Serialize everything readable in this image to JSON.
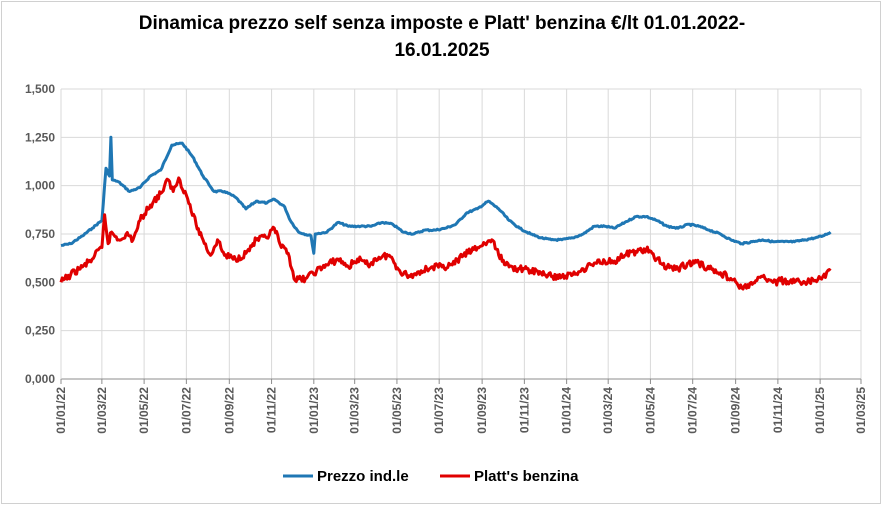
{
  "chart_data": {
    "type": "line",
    "title_line1": "Dinamica prezzo self senza imposte e Platt' benzina €/lt 01.01.2022-",
    "title_line2": "16.01.2025",
    "xlabel": "",
    "ylabel": "",
    "x_ticks": [
      "01/01/22",
      "01/03/22",
      "01/05/22",
      "01/07/22",
      "01/09/22",
      "01/11/22",
      "01/01/23",
      "01/03/23",
      "01/05/23",
      "01/07/23",
      "01/09/23",
      "01/11/23",
      "01/01/24",
      "01/03/24",
      "01/05/24",
      "01/07/24",
      "01/09/24",
      "01/11/24",
      "01/01/25",
      "01/03/25"
    ],
    "y_ticks": [
      "0,000",
      "0,250",
      "0,500",
      "0,750",
      "1,000",
      "1,250",
      "1,500"
    ],
    "ylim": [
      0,
      1.5
    ],
    "xlim": [
      "2022-01-01",
      "2025-03-01"
    ],
    "grid": true,
    "legend_position": "bottom",
    "series": [
      {
        "name": "Prezzo ind.le",
        "color": "#1f77b4",
        "points": [
          [
            "2022-01-01",
            0.69
          ],
          [
            "2022-01-15",
            0.7
          ],
          [
            "2022-02-01",
            0.74
          ],
          [
            "2022-02-15",
            0.78
          ],
          [
            "2022-03-01",
            0.82
          ],
          [
            "2022-03-07",
            1.09
          ],
          [
            "2022-03-12",
            1.05
          ],
          [
            "2022-03-14",
            1.25
          ],
          [
            "2022-03-16",
            1.03
          ],
          [
            "2022-03-25",
            1.02
          ],
          [
            "2022-04-10",
            0.97
          ],
          [
            "2022-04-25",
            0.99
          ],
          [
            "2022-05-10",
            1.05
          ],
          [
            "2022-05-25",
            1.08
          ],
          [
            "2022-06-10",
            1.21
          ],
          [
            "2022-06-25",
            1.22
          ],
          [
            "2022-07-10",
            1.15
          ],
          [
            "2022-07-25",
            1.05
          ],
          [
            "2022-08-10",
            0.97
          ],
          [
            "2022-08-25",
            0.97
          ],
          [
            "2022-09-10",
            0.94
          ],
          [
            "2022-09-25",
            0.88
          ],
          [
            "2022-10-10",
            0.92
          ],
          [
            "2022-10-25",
            0.91
          ],
          [
            "2022-11-05",
            0.93
          ],
          [
            "2022-11-20",
            0.89
          ],
          [
            "2022-11-28",
            0.82
          ],
          [
            "2022-12-10",
            0.76
          ],
          [
            "2022-12-28",
            0.74
          ],
          [
            "2023-01-01",
            0.65
          ],
          [
            "2023-01-03",
            0.75
          ],
          [
            "2023-01-20",
            0.76
          ],
          [
            "2023-02-05",
            0.81
          ],
          [
            "2023-02-20",
            0.79
          ],
          [
            "2023-03-10",
            0.79
          ],
          [
            "2023-03-25",
            0.79
          ],
          [
            "2023-04-10",
            0.81
          ],
          [
            "2023-04-25",
            0.8
          ],
          [
            "2023-05-10",
            0.76
          ],
          [
            "2023-05-25",
            0.75
          ],
          [
            "2023-06-10",
            0.77
          ],
          [
            "2023-06-25",
            0.77
          ],
          [
            "2023-07-10",
            0.78
          ],
          [
            "2023-07-25",
            0.8
          ],
          [
            "2023-08-10",
            0.86
          ],
          [
            "2023-08-25",
            0.88
          ],
          [
            "2023-09-10",
            0.92
          ],
          [
            "2023-09-25",
            0.88
          ],
          [
            "2023-10-10",
            0.82
          ],
          [
            "2023-10-25",
            0.78
          ],
          [
            "2023-11-10",
            0.75
          ],
          [
            "2023-11-25",
            0.73
          ],
          [
            "2023-12-10",
            0.72
          ],
          [
            "2023-12-25",
            0.72
          ],
          [
            "2024-01-10",
            0.73
          ],
          [
            "2024-01-25",
            0.75
          ],
          [
            "2024-02-10",
            0.79
          ],
          [
            "2024-02-25",
            0.79
          ],
          [
            "2024-03-10",
            0.78
          ],
          [
            "2024-03-25",
            0.81
          ],
          [
            "2024-04-10",
            0.84
          ],
          [
            "2024-04-25",
            0.84
          ],
          [
            "2024-05-10",
            0.82
          ],
          [
            "2024-05-25",
            0.79
          ],
          [
            "2024-06-10",
            0.78
          ],
          [
            "2024-06-25",
            0.8
          ],
          [
            "2024-07-10",
            0.79
          ],
          [
            "2024-07-25",
            0.77
          ],
          [
            "2024-08-10",
            0.75
          ],
          [
            "2024-08-25",
            0.72
          ],
          [
            "2024-09-10",
            0.7
          ],
          [
            "2024-09-25",
            0.71
          ],
          [
            "2024-10-10",
            0.72
          ],
          [
            "2024-10-25",
            0.71
          ],
          [
            "2024-11-10",
            0.71
          ],
          [
            "2024-11-25",
            0.71
          ],
          [
            "2024-12-10",
            0.72
          ],
          [
            "2024-12-25",
            0.73
          ],
          [
            "2025-01-05",
            0.74
          ],
          [
            "2025-01-16",
            0.76
          ]
        ]
      },
      {
        "name": "Platt's benzina",
        "color": "#e00000",
        "points": [
          [
            "2022-01-01",
            0.5
          ],
          [
            "2022-01-15",
            0.54
          ],
          [
            "2022-02-01",
            0.58
          ],
          [
            "2022-02-15",
            0.62
          ],
          [
            "2022-03-01",
            0.68
          ],
          [
            "2022-03-05",
            0.85
          ],
          [
            "2022-03-10",
            0.7
          ],
          [
            "2022-03-15",
            0.76
          ],
          [
            "2022-03-25",
            0.72
          ],
          [
            "2022-04-05",
            0.75
          ],
          [
            "2022-04-15",
            0.72
          ],
          [
            "2022-04-25",
            0.82
          ],
          [
            "2022-05-10",
            0.9
          ],
          [
            "2022-05-25",
            0.96
          ],
          [
            "2022-06-05",
            1.03
          ],
          [
            "2022-06-12",
            0.97
          ],
          [
            "2022-06-20",
            1.04
          ],
          [
            "2022-07-01",
            0.95
          ],
          [
            "2022-07-15",
            0.8
          ],
          [
            "2022-07-25",
            0.72
          ],
          [
            "2022-08-05",
            0.64
          ],
          [
            "2022-08-15",
            0.72
          ],
          [
            "2022-08-25",
            0.64
          ],
          [
            "2022-09-10",
            0.62
          ],
          [
            "2022-09-25",
            0.65
          ],
          [
            "2022-10-10",
            0.72
          ],
          [
            "2022-10-25",
            0.73
          ],
          [
            "2022-11-05",
            0.78
          ],
          [
            "2022-11-15",
            0.68
          ],
          [
            "2022-11-25",
            0.65
          ],
          [
            "2022-12-05",
            0.51
          ],
          [
            "2022-12-20",
            0.52
          ],
          [
            "2023-01-05",
            0.56
          ],
          [
            "2023-01-20",
            0.59
          ],
          [
            "2023-02-05",
            0.62
          ],
          [
            "2023-02-20",
            0.58
          ],
          [
            "2023-03-05",
            0.62
          ],
          [
            "2023-03-20",
            0.59
          ],
          [
            "2023-04-05",
            0.63
          ],
          [
            "2023-04-20",
            0.64
          ],
          [
            "2023-05-05",
            0.56
          ],
          [
            "2023-05-20",
            0.53
          ],
          [
            "2023-06-05",
            0.56
          ],
          [
            "2023-06-20",
            0.58
          ],
          [
            "2023-07-05",
            0.58
          ],
          [
            "2023-07-20",
            0.59
          ],
          [
            "2023-08-05",
            0.64
          ],
          [
            "2023-08-20",
            0.67
          ],
          [
            "2023-09-05",
            0.7
          ],
          [
            "2023-09-15",
            0.72
          ],
          [
            "2023-09-25",
            0.64
          ],
          [
            "2023-10-10",
            0.58
          ],
          [
            "2023-10-25",
            0.57
          ],
          [
            "2023-11-10",
            0.56
          ],
          [
            "2023-11-25",
            0.55
          ],
          [
            "2023-12-10",
            0.53
          ],
          [
            "2023-12-25",
            0.53
          ],
          [
            "2024-01-10",
            0.54
          ],
          [
            "2024-01-25",
            0.57
          ],
          [
            "2024-02-10",
            0.6
          ],
          [
            "2024-02-25",
            0.61
          ],
          [
            "2024-03-10",
            0.61
          ],
          [
            "2024-03-25",
            0.64
          ],
          [
            "2024-04-10",
            0.66
          ],
          [
            "2024-04-25",
            0.67
          ],
          [
            "2024-05-10",
            0.62
          ],
          [
            "2024-05-25",
            0.58
          ],
          [
            "2024-06-10",
            0.57
          ],
          [
            "2024-06-25",
            0.6
          ],
          [
            "2024-07-10",
            0.6
          ],
          [
            "2024-07-25",
            0.57
          ],
          [
            "2024-08-10",
            0.55
          ],
          [
            "2024-08-25",
            0.52
          ],
          [
            "2024-09-10",
            0.47
          ],
          [
            "2024-09-25",
            0.49
          ],
          [
            "2024-10-10",
            0.53
          ],
          [
            "2024-10-25",
            0.5
          ],
          [
            "2024-11-10",
            0.51
          ],
          [
            "2024-11-25",
            0.5
          ],
          [
            "2024-12-10",
            0.5
          ],
          [
            "2024-12-25",
            0.51
          ],
          [
            "2025-01-05",
            0.53
          ],
          [
            "2025-01-16",
            0.56
          ]
        ]
      }
    ]
  }
}
